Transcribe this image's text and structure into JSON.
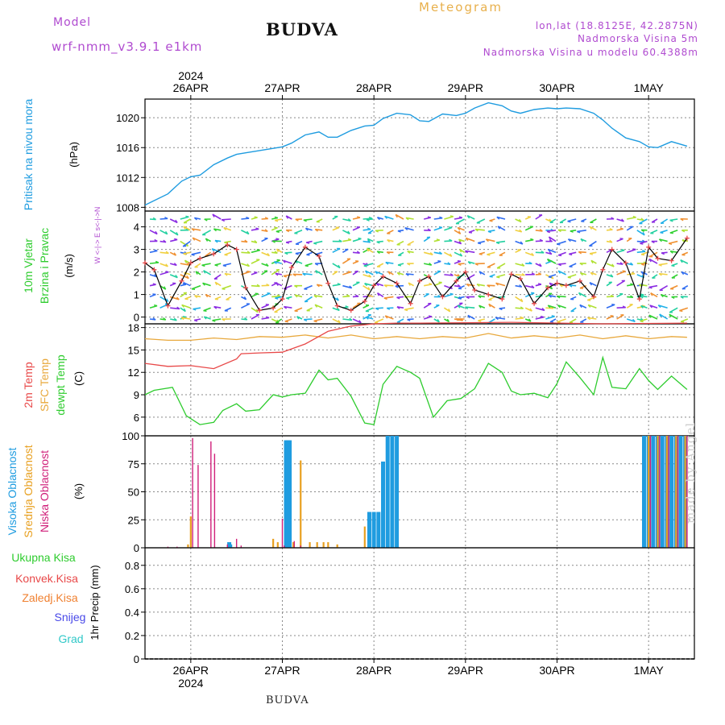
{
  "header": {
    "model_label": "Model",
    "model_name": "wrf-nmm_v3.9.1 e1km",
    "title": "BUDVA",
    "meteogram_label": "Meteogram",
    "lonlat": "lon,lat (18.8125E, 42.2875N)",
    "elevation": "Nadmorska Visina 5m",
    "model_elevation": "Nadmorska Visina u modelu 60.4388m"
  },
  "footer": {
    "station": "BUDVA",
    "credit": "made by Angel"
  },
  "colors": {
    "pressure": "#1f9ce0",
    "temp2m": "#e84848",
    "sfc_temp": "#e8a83c",
    "dewpoint": "#2ecc2e",
    "high_cloud": "#1f9ce0",
    "mid_cloud": "#e8a020",
    "low_cloud": "#d0207a",
    "total_precip": "#2ecc2e",
    "conv_precip": "#e84848",
    "frozen_precip": "#f08030",
    "snow": "#4848e8",
    "hail": "#30c8c8"
  },
  "chart_data": [
    {
      "type": "line",
      "panel": "pressure",
      "ylabel_left": "Pritisak na nivou mora",
      "unit": "(hPa)",
      "yticks": [
        1008,
        1012,
        1016,
        1020
      ],
      "ylim": [
        1007.5,
        1022.5
      ],
      "x_dates": [
        "2024-04-25 12:00",
        "2024-05-01 12:00"
      ],
      "top_date_labels": [
        "26APR",
        "27APR",
        "28APR",
        "29APR",
        "30APR",
        "1MAY"
      ],
      "top_year": "2024",
      "series": [
        {
          "x": [
            0.0,
            0.1,
            0.25,
            0.4,
            0.5,
            0.6,
            0.75,
            0.9,
            1.0,
            1.1,
            1.25,
            1.4,
            1.5,
            1.6,
            1.75,
            1.9,
            2.0,
            2.1,
            2.25,
            2.4,
            2.5,
            2.6,
            2.75,
            2.9,
            3.0,
            3.1,
            3.25,
            3.4,
            3.5,
            3.6,
            3.75,
            3.9,
            4.0,
            4.1,
            4.25,
            4.4,
            4.5,
            4.6,
            4.75,
            4.9,
            5.0,
            5.1,
            5.25,
            5.4,
            5.5,
            5.6,
            5.75,
            5.92
          ],
          "values": [
            1008.3,
            1008.9,
            1009.8,
            1011.5,
            1012.1,
            1012.3,
            1013.7,
            1014.6,
            1015.1,
            1015.3,
            1015.6,
            1015.9,
            1016.1,
            1016.6,
            1017.7,
            1018.1,
            1017.4,
            1017.4,
            1018.3,
            1018.9,
            1019.0,
            1019.9,
            1020.6,
            1020.4,
            1019.6,
            1019.5,
            1020.5,
            1020.3,
            1020.6,
            1021.3,
            1022.0,
            1021.6,
            1020.9,
            1020.6,
            1021.1,
            1021.3,
            1021.2,
            1021.3,
            1021.2,
            1020.6,
            1019.7,
            1018.6,
            1017.3,
            1016.8,
            1016.1,
            1016.0,
            1016.8,
            1016.2
          ]
        }
      ]
    },
    {
      "type": "line",
      "panel": "wind",
      "ylabel_left": [
        "10m Vjetar",
        "Brzina i Pravac"
      ],
      "unit": "(m/s)",
      "compass": "W <-|-> E  s<-|->N",
      "yticks": [
        0,
        1,
        2,
        3,
        4
      ],
      "ylim": [
        -0.3,
        4.7
      ],
      "series": [
        {
          "x": [
            0.0,
            0.1,
            0.25,
            0.4,
            0.5,
            0.6,
            0.75,
            0.9,
            1.0,
            1.1,
            1.25,
            1.4,
            1.5,
            1.6,
            1.75,
            1.9,
            2.0,
            2.1,
            2.25,
            2.4,
            2.5,
            2.6,
            2.75,
            2.9,
            3.0,
            3.1,
            3.25,
            3.4,
            3.5,
            3.6,
            3.75,
            3.9,
            4.0,
            4.1,
            4.25,
            4.4,
            4.5,
            4.6,
            4.75,
            4.9,
            5.0,
            5.1,
            5.25,
            5.4,
            5.5,
            5.6,
            5.75,
            5.92
          ],
          "values": [
            2.4,
            2.1,
            0.5,
            1.6,
            2.4,
            2.6,
            2.8,
            3.2,
            3.0,
            1.3,
            0.3,
            0.4,
            0.8,
            2.2,
            3.1,
            2.7,
            1.5,
            0.5,
            0.3,
            0.7,
            1.4,
            1.8,
            1.5,
            0.6,
            1.6,
            1.8,
            0.9,
            1.6,
            2.0,
            1.2,
            1.0,
            0.8,
            1.9,
            1.7,
            0.6,
            1.3,
            1.5,
            1.4,
            1.6,
            0.9,
            2.1,
            3.0,
            2.4,
            0.8,
            3.1,
            2.6,
            2.5,
            3.5
          ]
        }
      ]
    },
    {
      "type": "line",
      "panel": "temperature",
      "ylabel_left": [
        "2m Temp",
        "SFC Temp",
        "dewpt Temp"
      ],
      "unit": "(C)",
      "yticks": [
        6,
        9,
        12,
        15,
        18
      ],
      "ylim": [
        3.5,
        18.5
      ],
      "series": [
        {
          "name": "2m Temp",
          "x": [
            0.0,
            0.25,
            0.5,
            0.75,
            1.0,
            1.05,
            1.25,
            1.5,
            1.75,
            2.0,
            2.25,
            2.5,
            2.75,
            3.0,
            4.0,
            5.0,
            5.92
          ],
          "values": [
            13.2,
            12.8,
            12.9,
            12.5,
            13.8,
            14.5,
            14.6,
            14.7,
            15.8,
            17.5,
            18.2,
            18.5,
            18.6,
            18.6,
            18.7,
            18.5,
            18.6
          ]
        },
        {
          "name": "SFC Temp",
          "x": [
            0.0,
            0.25,
            0.5,
            0.75,
            1.0,
            1.25,
            1.5,
            1.75,
            2.0,
            2.25,
            2.5,
            2.75,
            3.0,
            3.25,
            3.5,
            3.75,
            4.0,
            4.25,
            4.5,
            4.75,
            5.0,
            5.25,
            5.5,
            5.75,
            5.92
          ],
          "values": [
            16.5,
            16.3,
            16.3,
            16.6,
            16.4,
            16.8,
            16.7,
            17.0,
            16.6,
            17.0,
            16.5,
            16.8,
            16.5,
            16.8,
            16.6,
            17.2,
            16.6,
            16.9,
            16.6,
            17.0,
            16.5,
            16.9,
            16.5,
            16.8,
            16.7
          ]
        },
        {
          "name": "dewpt Temp",
          "x": [
            0.0,
            0.1,
            0.3,
            0.45,
            0.6,
            0.75,
            0.85,
            1.0,
            1.1,
            1.25,
            1.4,
            1.5,
            1.6,
            1.75,
            1.9,
            2.0,
            2.1,
            2.25,
            2.4,
            2.5,
            2.6,
            2.75,
            2.9,
            3.0,
            3.15,
            3.3,
            3.45,
            3.6,
            3.75,
            3.9,
            4.0,
            4.1,
            4.25,
            4.4,
            4.5,
            4.6,
            4.75,
            4.9,
            5.0,
            5.1,
            5.25,
            5.4,
            5.5,
            5.6,
            5.75,
            5.92
          ],
          "values": [
            9.0,
            9.6,
            10.0,
            6.2,
            5.0,
            5.3,
            6.9,
            7.8,
            6.8,
            7.0,
            9.0,
            8.7,
            9.0,
            9.2,
            12.3,
            11.0,
            11.2,
            8.8,
            5.2,
            5.0,
            10.4,
            12.8,
            12.0,
            11.2,
            6.0,
            8.2,
            8.5,
            9.8,
            13.2,
            12.0,
            9.5,
            9.0,
            9.2,
            8.6,
            10.5,
            13.4,
            11.3,
            9.0,
            14.0,
            10.0,
            9.8,
            12.5,
            10.9,
            9.7,
            11.5,
            9.7
          ]
        }
      ]
    },
    {
      "type": "bar",
      "panel": "clouds",
      "ylabel_left": [
        "Visoka Oblacnost",
        "Srednja Oblacnost",
        "Niska Oblacnost"
      ],
      "unit": "(%)",
      "yticks": [
        0,
        25,
        50,
        75,
        100
      ],
      "ylim": [
        0,
        100
      ],
      "series": [
        {
          "name": "Visoka Oblacnost",
          "x": [
            0.92,
            0.93,
            1.54,
            1.56,
            1.58,
            2.45,
            2.5,
            2.55,
            2.6,
            2.65,
            2.7,
            2.75,
            5.45,
            5.5,
            5.55,
            5.6,
            5.65,
            5.7,
            5.75,
            5.8,
            5.85,
            5.9
          ],
          "values": [
            5,
            3,
            96,
            96,
            96,
            32,
            32,
            32,
            77,
            100,
            100,
            100,
            100,
            100,
            100,
            100,
            100,
            100,
            100,
            100,
            100,
            100
          ]
        },
        {
          "name": "Srednja Oblacnost",
          "x": [
            0.47,
            0.5,
            1.4,
            1.45,
            1.62,
            1.7,
            1.8,
            1.88,
            1.95,
            2.0,
            2.1,
            2.4,
            5.5,
            5.6,
            5.7,
            5.8,
            5.9
          ],
          "values": [
            3,
            28,
            8,
            5,
            5,
            78,
            5,
            5,
            5,
            5,
            3,
            19,
            100,
            100,
            100,
            100,
            100
          ]
        },
        {
          "name": "Niska Oblacnost",
          "x": [
            0.25,
            0.35,
            0.52,
            0.58,
            0.72,
            0.76,
            0.9,
            1.0,
            1.05,
            1.5,
            1.52,
            1.63,
            1.7,
            5.52,
            5.62,
            5.72,
            5.82,
            5.92
          ],
          "values": [
            1,
            1,
            98,
            74,
            95,
            84,
            3,
            8,
            2,
            26,
            2,
            6,
            2,
            100,
            100,
            100,
            100,
            100
          ]
        }
      ]
    },
    {
      "type": "bar",
      "panel": "precipitation",
      "ylabel_left": [
        "Ukupna Kisa",
        "Konvek.Kisa",
        "Zaledj.Kisa",
        "Snijeg",
        "Grad"
      ],
      "unit": "1hr Precip (mm)",
      "yticks": [
        "0",
        "0.2",
        "0.4",
        "0.6",
        "0.8"
      ],
      "ylim": [
        0,
        0.95
      ],
      "series": [],
      "bottom_date_labels": [
        "26APR",
        "27APR",
        "28APR",
        "29APR",
        "30APR",
        "1MAY"
      ],
      "bottom_year": "2024"
    }
  ]
}
